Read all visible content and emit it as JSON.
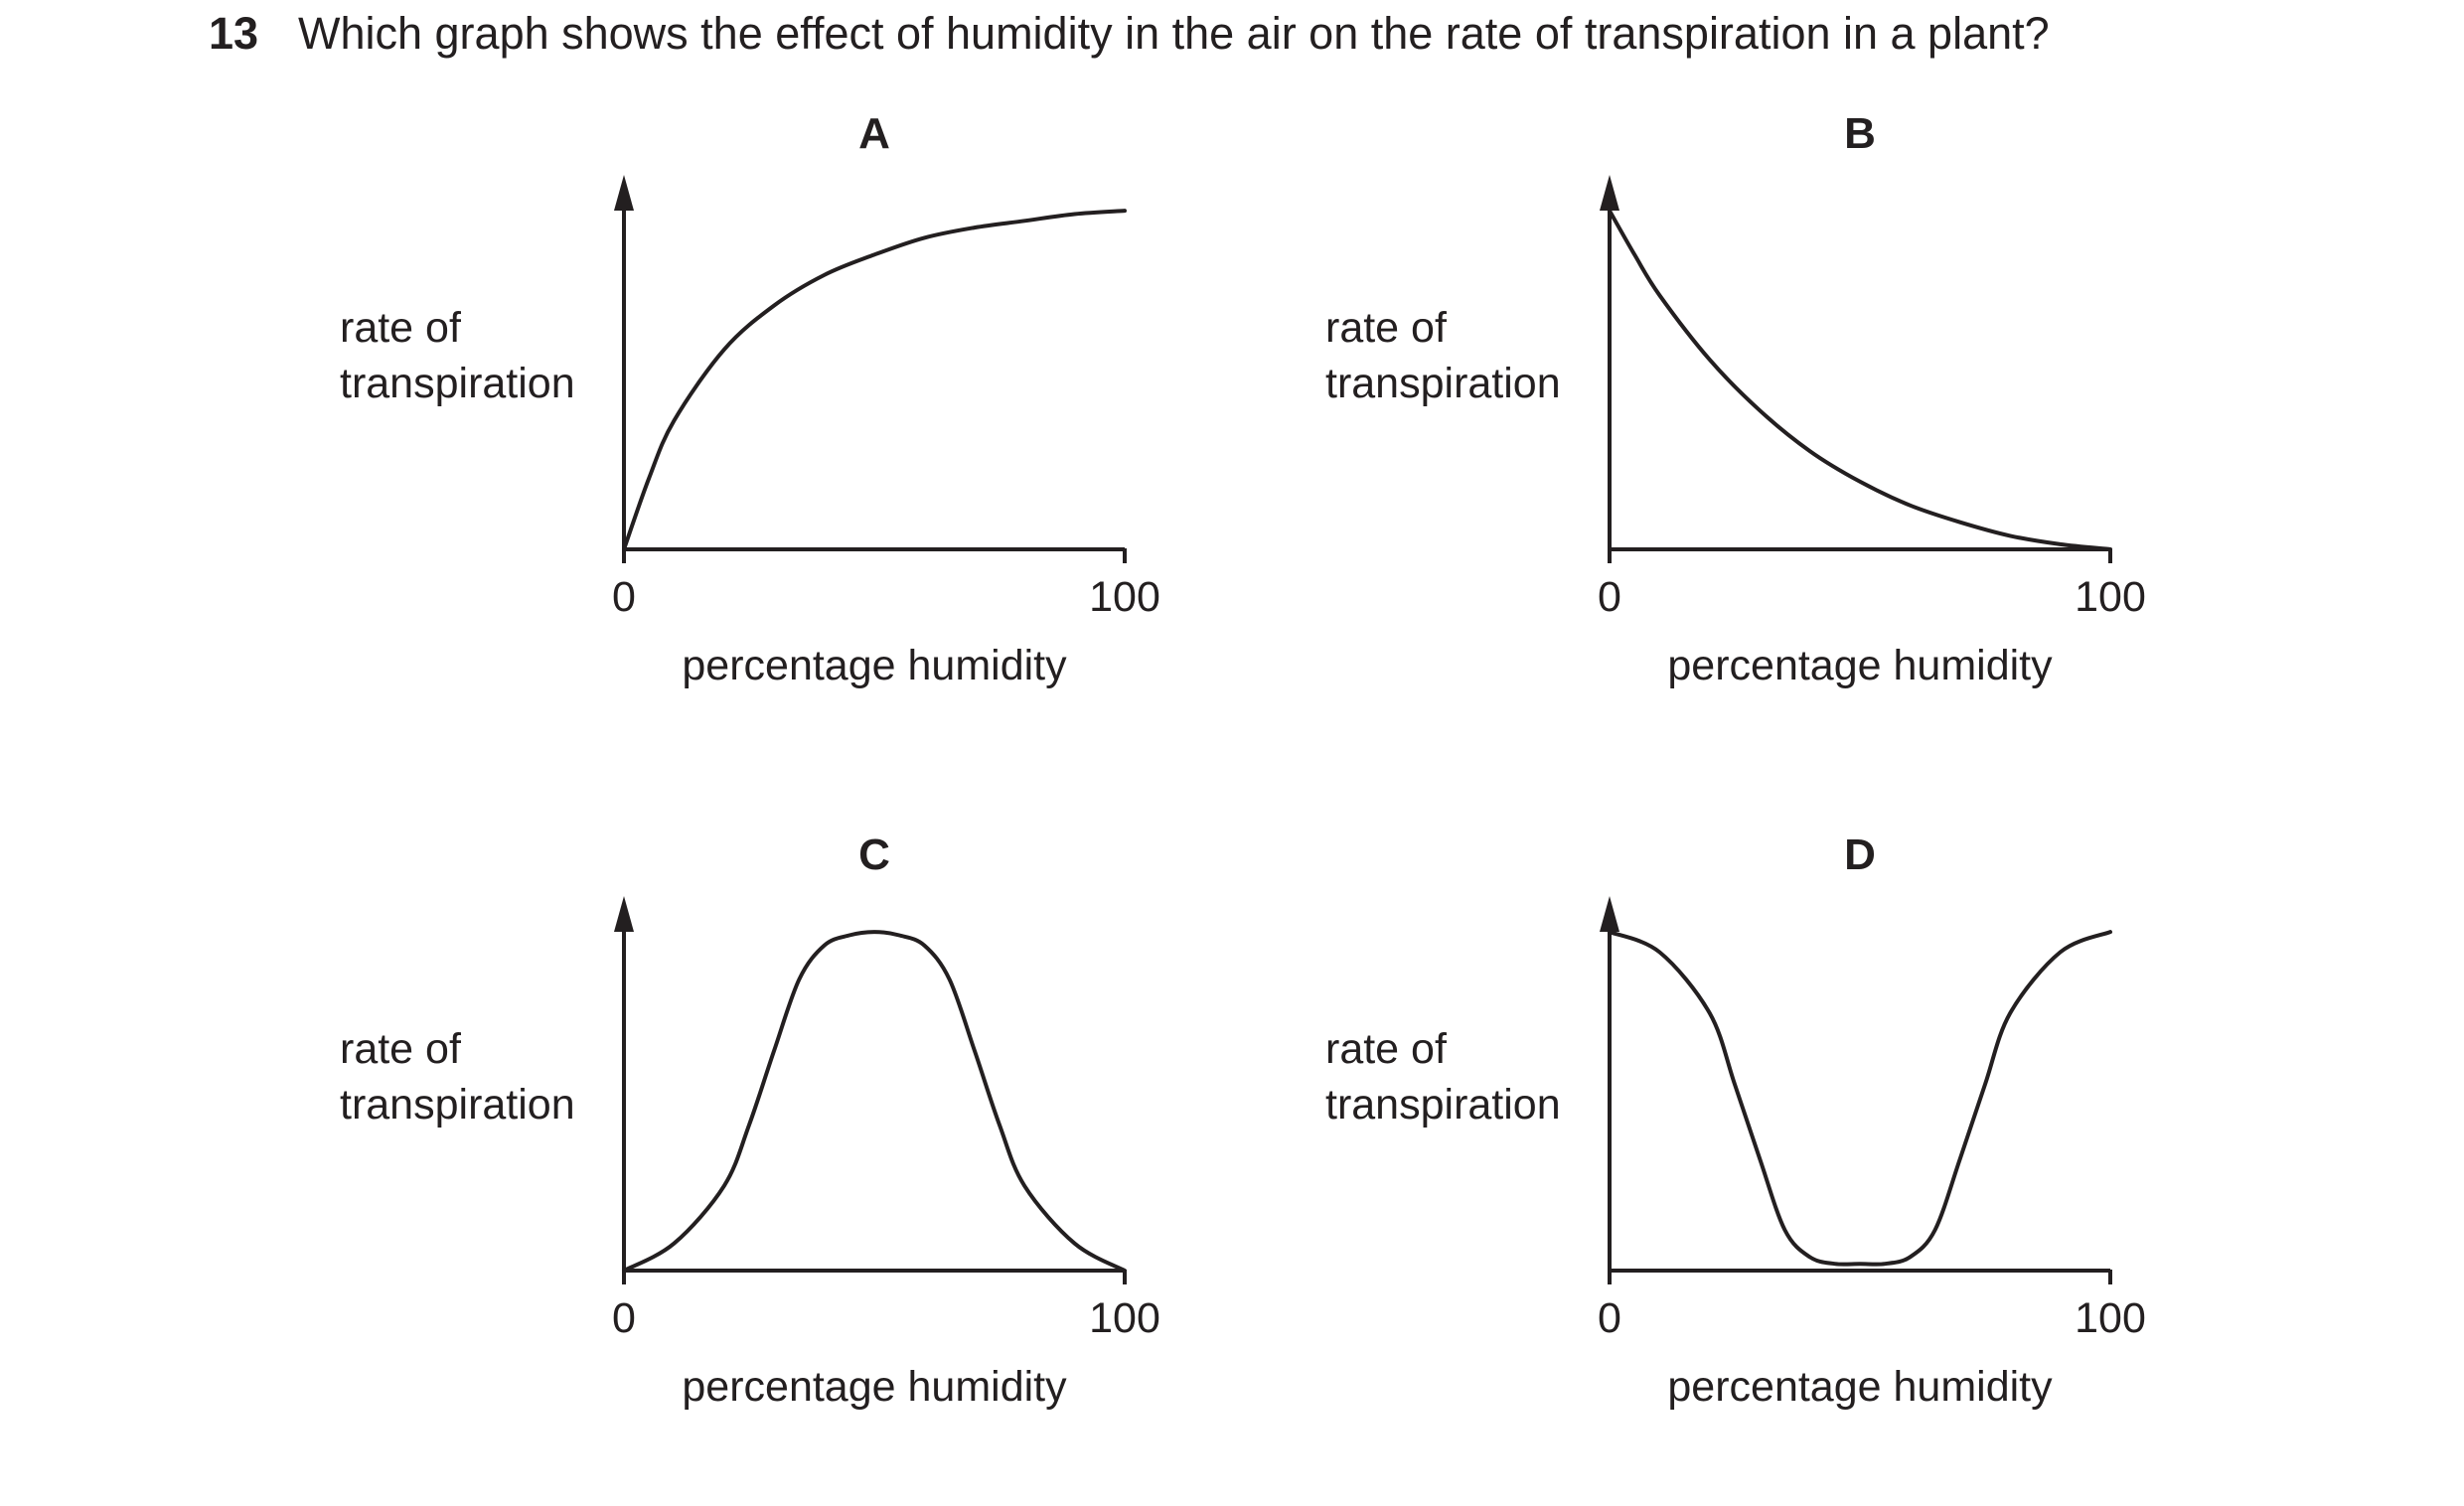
{
  "question": {
    "number": "13",
    "text": "Which graph shows the effect of humidity in the air on the rate of transpiration in a plant?"
  },
  "colors": {
    "ink": "#231f20",
    "background": "#ffffff"
  },
  "chart_data": [
    {
      "type": "line",
      "label": "A",
      "ylabel_line1": "rate of",
      "ylabel_line2": "transpiration",
      "xlabel": "percentage humidity",
      "xtick_min": "0",
      "xtick_max": "100",
      "xlim": [
        0,
        100
      ],
      "ylim": [
        0,
        1.1
      ],
      "series": [
        {
          "x": [
            0,
            5,
            10,
            20,
            30,
            40,
            50,
            60,
            70,
            80,
            90,
            100
          ],
          "y": [
            0,
            0.21,
            0.38,
            0.59,
            0.72,
            0.81,
            0.87,
            0.92,
            0.95,
            0.97,
            0.99,
            1.0
          ]
        }
      ]
    },
    {
      "type": "line",
      "label": "B",
      "ylabel_line1": "rate of",
      "ylabel_line2": "transpiration",
      "xlabel": "percentage humidity",
      "xtick_min": "0",
      "xtick_max": "100",
      "xlim": [
        0,
        100
      ],
      "ylim": [
        0,
        1.1
      ],
      "series": [
        {
          "x": [
            0,
            5,
            10,
            20,
            30,
            40,
            50,
            60,
            70,
            80,
            90,
            100
          ],
          "y": [
            1.0,
            0.87,
            0.75,
            0.56,
            0.41,
            0.29,
            0.2,
            0.13,
            0.08,
            0.04,
            0.015,
            0.0
          ]
        }
      ]
    },
    {
      "type": "line",
      "label": "C",
      "ylabel_line1": "rate of",
      "ylabel_line2": "transpiration",
      "xlabel": "percentage humidity",
      "xtick_min": "0",
      "xtick_max": "100",
      "xlim": [
        0,
        100
      ],
      "ylim": [
        0,
        1.1
      ],
      "series": [
        {
          "x": [
            0,
            10,
            20,
            25,
            30,
            35,
            40,
            45,
            50,
            55,
            60,
            65,
            70,
            75,
            80,
            90,
            100
          ],
          "y": [
            0.0,
            0.08,
            0.25,
            0.43,
            0.65,
            0.86,
            0.96,
            0.99,
            1.0,
            0.99,
            0.96,
            0.86,
            0.65,
            0.43,
            0.25,
            0.08,
            0.0
          ]
        }
      ]
    },
    {
      "type": "line",
      "label": "D",
      "ylabel_line1": "rate of",
      "ylabel_line2": "transpiration",
      "xlabel": "percentage humidity",
      "xtick_min": "0",
      "xtick_max": "100",
      "xlim": [
        0,
        100
      ],
      "ylim": [
        0,
        1.1
      ],
      "series": [
        {
          "x": [
            0,
            10,
            20,
            25,
            30,
            35,
            40,
            45,
            50,
            55,
            60,
            65,
            70,
            75,
            80,
            90,
            100
          ],
          "y": [
            1.0,
            0.94,
            0.76,
            0.55,
            0.33,
            0.12,
            0.04,
            0.02,
            0.02,
            0.02,
            0.04,
            0.12,
            0.33,
            0.55,
            0.76,
            0.94,
            1.0
          ]
        }
      ]
    }
  ]
}
